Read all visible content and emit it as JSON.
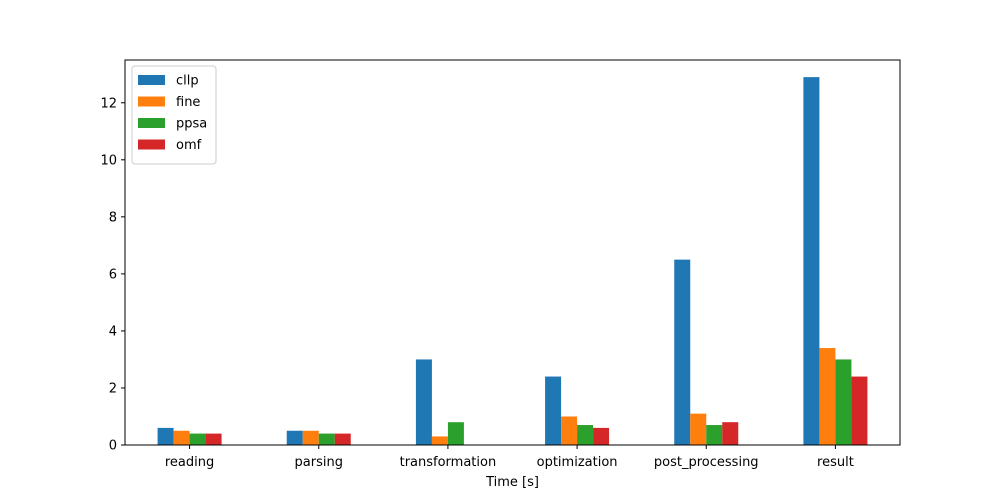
{
  "chart_data": {
    "type": "bar",
    "title": "",
    "xlabel": "Time [s]",
    "ylabel": "",
    "ylim": [
      0,
      13.5
    ],
    "yticks": [
      0,
      2,
      4,
      6,
      8,
      10,
      12
    ],
    "grid": false,
    "legend_position": "top-left",
    "categories": [
      "reading",
      "parsing",
      "transformation",
      "optimization",
      "post_processing",
      "result"
    ],
    "series": [
      {
        "name": "cllp",
        "color": "#1f77b4",
        "values": [
          0.6,
          0.5,
          3.0,
          2.4,
          6.5,
          12.9
        ]
      },
      {
        "name": "fine",
        "color": "#ff7f0e",
        "values": [
          0.5,
          0.5,
          0.3,
          1.0,
          1.1,
          3.4
        ]
      },
      {
        "name": "ppsa",
        "color": "#2ca02c",
        "values": [
          0.4,
          0.4,
          0.8,
          0.7,
          0.7,
          3.0
        ]
      },
      {
        "name": "omf",
        "color": "#d62728",
        "values": [
          0.4,
          0.4,
          0.0,
          0.6,
          0.8,
          2.4
        ]
      }
    ]
  }
}
